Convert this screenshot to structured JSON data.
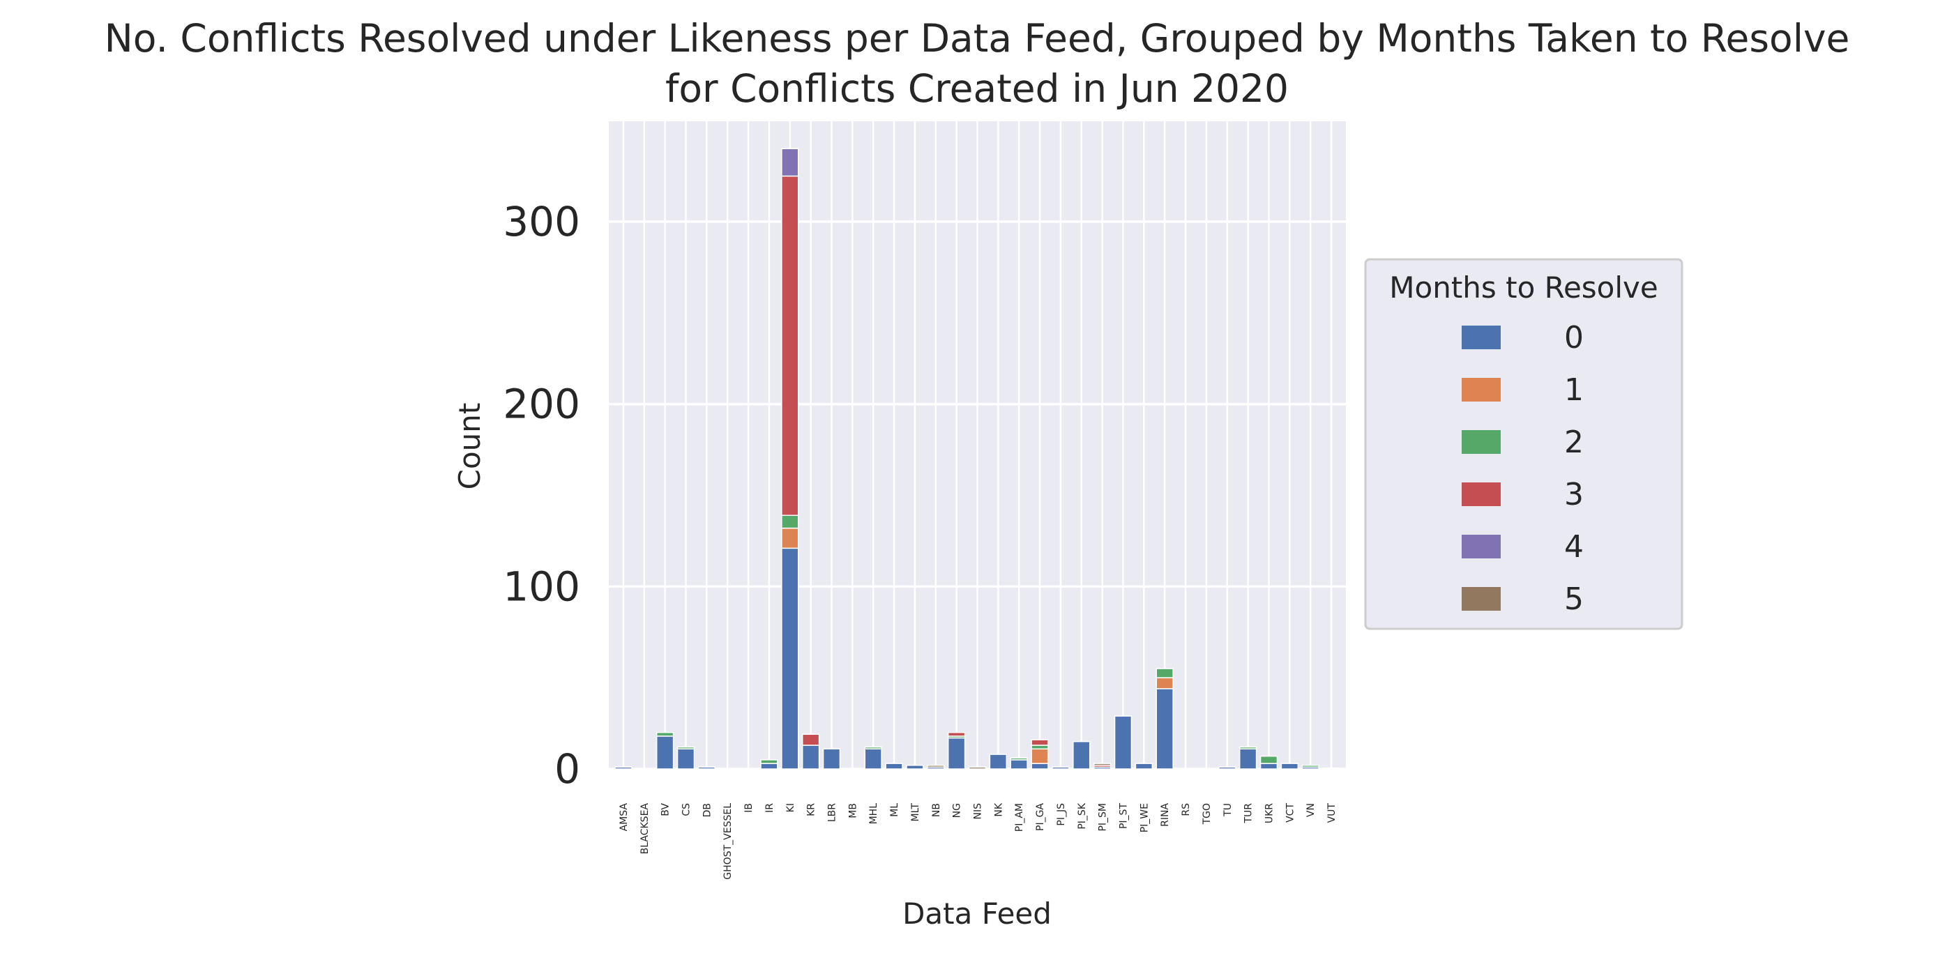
{
  "chart_data": {
    "type": "bar",
    "stacked": true,
    "title_line1": "No. Conflicts Resolved under Likeness per Data Feed, Grouped by Months Taken to Resolve",
    "title_line2": "for Conflicts Created in Jun 2020",
    "xlabel": "Data Feed",
    "ylabel": "Count",
    "ylim": [
      0,
      355
    ],
    "yticks": [
      0,
      100,
      200,
      300
    ],
    "grid": true,
    "legend_title": "Months to Resolve",
    "legend_position": "center-right outside",
    "categories": [
      "AMSA",
      "BLACKSEA",
      "BV",
      "CS",
      "DB",
      "GHOST_VESSEL",
      "IB",
      "IR",
      "KI",
      "KR",
      "LBR",
      "MB",
      "MHL",
      "ML",
      "MLT",
      "NB",
      "NG",
      "NIS",
      "NK",
      "PI_AM",
      "PI_GA",
      "PI_JS",
      "PI_SK",
      "PI_SM",
      "PI_ST",
      "PI_WE",
      "RINA",
      "RS",
      "TGO",
      "TU",
      "TUR",
      "UKR",
      "VCT",
      "VN",
      "VUT"
    ],
    "series": [
      {
        "name": "0",
        "color": "#4c72b0",
        "values": [
          1,
          0,
          18,
          11,
          1,
          0,
          0,
          3,
          121,
          13,
          11,
          0,
          11,
          3,
          2,
          1,
          17,
          0,
          8,
          5,
          3,
          1,
          15,
          1,
          29,
          3,
          44,
          0,
          0,
          1,
          11,
          3,
          3,
          1,
          0.5
        ]
      },
      {
        "name": "1",
        "color": "#dd8452",
        "values": [
          0,
          0,
          0,
          0,
          0,
          0,
          0,
          0,
          11,
          0,
          0,
          0,
          0,
          0,
          0,
          0,
          0,
          0,
          0,
          0,
          8,
          0,
          0,
          0,
          0,
          0,
          6,
          0,
          0,
          0,
          0,
          0,
          0,
          0,
          0
        ]
      },
      {
        "name": "2",
        "color": "#55a868",
        "values": [
          0,
          0,
          2,
          1,
          0,
          0,
          0,
          2,
          7,
          0,
          0,
          0,
          1,
          0,
          0,
          0,
          1,
          0,
          0,
          1,
          2,
          0,
          0,
          0,
          0,
          0,
          5,
          0,
          0,
          0,
          1,
          4,
          0,
          1,
          0
        ]
      },
      {
        "name": "3",
        "color": "#c44e52",
        "values": [
          0,
          0,
          0,
          0,
          0,
          0,
          0,
          0,
          186,
          6,
          0,
          0,
          0,
          0,
          0,
          0,
          2,
          0,
          0,
          0,
          3,
          0,
          0,
          1,
          0,
          0,
          0,
          0,
          0,
          0,
          0,
          0,
          0,
          0,
          0
        ]
      },
      {
        "name": "4",
        "color": "#8172b3",
        "values": [
          0,
          0,
          0,
          0,
          0,
          0,
          0,
          0,
          15,
          0,
          0,
          0,
          0,
          0,
          0,
          0,
          0,
          0,
          0,
          0,
          0,
          0,
          0,
          0,
          0,
          0,
          0,
          0,
          0,
          0,
          0,
          0,
          0,
          0,
          0
        ]
      },
      {
        "name": "5",
        "color": "#937860",
        "values": [
          0,
          0,
          0,
          0,
          0,
          0,
          0,
          0,
          0,
          0,
          0,
          0,
          0,
          0,
          0,
          1,
          0,
          1,
          0,
          0,
          0,
          0,
          0,
          1,
          0,
          0,
          0,
          0,
          0,
          0,
          0,
          0,
          0,
          0,
          0
        ]
      }
    ]
  }
}
